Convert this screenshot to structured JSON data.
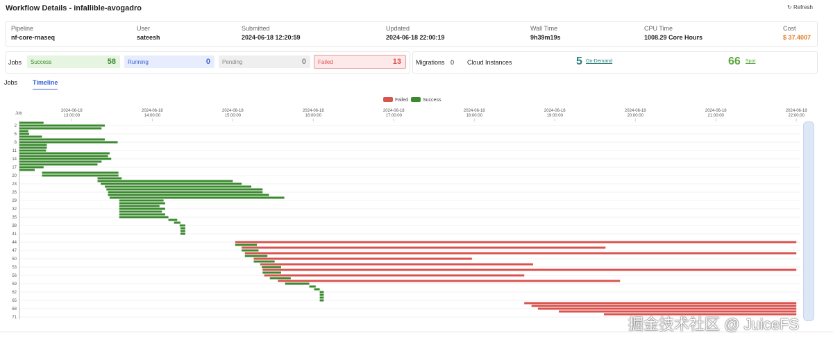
{
  "header": {
    "title": "Workflow Details - infallible-avogadro",
    "refresh": "Refresh"
  },
  "summary": [
    {
      "label": "Pipeline",
      "value": "nf-core-rnaseq"
    },
    {
      "label": "User",
      "value": "sateesh"
    },
    {
      "label": "Submitted",
      "value": "2024-06-18 12:20:59"
    },
    {
      "label": "Updated",
      "value": "2024-06-18 22:00:19"
    },
    {
      "label": "Wall Time",
      "value": "9h39m19s"
    },
    {
      "label": "CPU Time",
      "value": "1008.29 Core Hours"
    },
    {
      "label": "Cost",
      "value": "$ 37.4007"
    }
  ],
  "jobs_status": {
    "label": "Jobs",
    "items": [
      {
        "label": "Success",
        "value": 58
      },
      {
        "label": "Running",
        "value": 0
      },
      {
        "label": "Pending",
        "value": 0
      },
      {
        "label": "Failed",
        "value": 13
      }
    ]
  },
  "instances": {
    "migrations_label": "Migrations",
    "migrations": 0,
    "cloud_label": "Cloud Instances",
    "on_demand": 5,
    "on_demand_label": "On-Demand",
    "spot": 66,
    "spot_label": "Spot"
  },
  "tabs": [
    "Jobs",
    "Timeline"
  ],
  "timeline": {
    "type": "gantt",
    "y_label": "Job",
    "legend": [
      {
        "name": "Failed",
        "color": "#d9534f"
      },
      {
        "name": "Success",
        "color": "#3b8a2f"
      }
    ],
    "xlim": [
      12.35,
      22.05
    ],
    "xticks": [
      {
        "value": 13,
        "label": "2024-06-18 13:00:00"
      },
      {
        "value": 14,
        "label": "2024-06-18 14:00:00"
      },
      {
        "value": 15,
        "label": "2024-06-18 15:00:00"
      },
      {
        "value": 16,
        "label": "2024-06-18 16:00:00"
      },
      {
        "value": 17,
        "label": "2024-06-18 17:00:00"
      },
      {
        "value": 18,
        "label": "2024-06-18 18:00:00"
      },
      {
        "value": 19,
        "label": "2024-06-18 19:00:00"
      },
      {
        "value": 20,
        "label": "2024-06-18 20:00:00"
      },
      {
        "value": 21,
        "label": "2024-06-18 21:00:00"
      },
      {
        "value": 22,
        "label": "2024-06-18 22:00:00"
      }
    ],
    "ylim": [
      1,
      71
    ],
    "yticks": [
      2,
      5,
      8,
      11,
      14,
      17,
      20,
      23,
      26,
      29,
      32,
      35,
      38,
      41,
      44,
      47,
      50,
      53,
      56,
      59,
      62,
      65,
      68,
      71
    ],
    "jobs": [
      {
        "start": 12.35,
        "end": 12.65,
        "color": "#3b8a2f"
      },
      {
        "start": 12.35,
        "end": 13.41,
        "color": "#3b8a2f"
      },
      {
        "start": 12.35,
        "end": 13.37,
        "color": "#3b8a2f"
      },
      {
        "start": 12.35,
        "end": 12.46,
        "color": "#3b8a2f"
      },
      {
        "start": 12.35,
        "end": 12.47,
        "color": "#3b8a2f"
      },
      {
        "start": 12.35,
        "end": 12.63,
        "color": "#3b8a2f"
      },
      {
        "start": 12.35,
        "end": 13.41,
        "color": "#3b8a2f"
      },
      {
        "start": 12.35,
        "end": 13.57,
        "color": "#3b8a2f"
      },
      {
        "start": 12.35,
        "end": 12.69,
        "color": "#3b8a2f"
      },
      {
        "start": 12.35,
        "end": 12.69,
        "color": "#3b8a2f"
      },
      {
        "start": 12.35,
        "end": 12.68,
        "color": "#3b8a2f"
      },
      {
        "start": 12.35,
        "end": 13.47,
        "color": "#3b8a2f"
      },
      {
        "start": 12.35,
        "end": 13.45,
        "color": "#3b8a2f"
      },
      {
        "start": 12.35,
        "end": 13.49,
        "color": "#3b8a2f"
      },
      {
        "start": 12.35,
        "end": 13.37,
        "color": "#3b8a2f"
      },
      {
        "start": 12.35,
        "end": 13.32,
        "color": "#3b8a2f"
      },
      {
        "start": 12.35,
        "end": 12.65,
        "color": "#3b8a2f"
      },
      {
        "start": 12.35,
        "end": 12.54,
        "color": "#3b8a2f"
      },
      {
        "start": 12.63,
        "end": 13.58,
        "color": "#3b8a2f"
      },
      {
        "start": 12.63,
        "end": 13.58,
        "color": "#3b8a2f"
      },
      {
        "start": 13.32,
        "end": 13.62,
        "color": "#3b8a2f"
      },
      {
        "start": 13.32,
        "end": 15.0,
        "color": "#3b8a2f"
      },
      {
        "start": 13.36,
        "end": 15.11,
        "color": "#3b8a2f"
      },
      {
        "start": 13.41,
        "end": 15.23,
        "color": "#3b8a2f"
      },
      {
        "start": 13.43,
        "end": 15.37,
        "color": "#3b8a2f"
      },
      {
        "start": 13.45,
        "end": 15.37,
        "color": "#3b8a2f"
      },
      {
        "start": 13.45,
        "end": 15.45,
        "color": "#3b8a2f"
      },
      {
        "start": 13.47,
        "end": 15.64,
        "color": "#3b8a2f"
      },
      {
        "start": 13.59,
        "end": 14.14,
        "color": "#3b8a2f"
      },
      {
        "start": 13.59,
        "end": 14.16,
        "color": "#3b8a2f"
      },
      {
        "start": 13.59,
        "end": 14.09,
        "color": "#3b8a2f"
      },
      {
        "start": 13.59,
        "end": 14.16,
        "color": "#3b8a2f"
      },
      {
        "start": 13.59,
        "end": 14.12,
        "color": "#3b8a2f"
      },
      {
        "start": 13.59,
        "end": 14.16,
        "color": "#3b8a2f"
      },
      {
        "start": 13.59,
        "end": 14.2,
        "color": "#3b8a2f"
      },
      {
        "start": 14.2,
        "end": 14.31,
        "color": "#3b8a2f"
      },
      {
        "start": 14.27,
        "end": 14.35,
        "color": "#3b8a2f"
      },
      {
        "start": 14.34,
        "end": 14.41,
        "color": "#3b8a2f"
      },
      {
        "start": 14.35,
        "end": 14.41,
        "color": "#3b8a2f"
      },
      {
        "start": 14.35,
        "end": 14.41,
        "color": "#3b8a2f"
      },
      {
        "start": 14.35,
        "end": 14.41,
        "color": "#3b8a2f"
      },
      {
        "start": null,
        "end": null,
        "color": null
      },
      {
        "start": null,
        "end": null,
        "color": null
      },
      {
        "start": 15.03,
        "end": 22.0,
        "color": "#d9534f"
      },
      {
        "start": 15.03,
        "end": 15.3,
        "color": "#3b8a2f"
      },
      {
        "start": 15.11,
        "end": 19.63,
        "color": "#d9534f"
      },
      {
        "start": 15.11,
        "end": 15.32,
        "color": "#3b8a2f"
      },
      {
        "start": 15.15,
        "end": 22.0,
        "color": "#d9534f"
      },
      {
        "start": 15.15,
        "end": 15.43,
        "color": "#3b8a2f"
      },
      {
        "start": 15.26,
        "end": 17.97,
        "color": "#d9534f"
      },
      {
        "start": 15.26,
        "end": 15.52,
        "color": "#3b8a2f"
      },
      {
        "start": 15.34,
        "end": 18.73,
        "color": "#d9534f"
      },
      {
        "start": 15.36,
        "end": 15.6,
        "color": "#3b8a2f"
      },
      {
        "start": 15.37,
        "end": 22.0,
        "color": "#d9534f"
      },
      {
        "start": 15.37,
        "end": 15.6,
        "color": "#3b8a2f"
      },
      {
        "start": 15.39,
        "end": 18.62,
        "color": "#d9534f"
      },
      {
        "start": 15.46,
        "end": 15.72,
        "color": "#3b8a2f"
      },
      {
        "start": 15.56,
        "end": 19.81,
        "color": "#d9534f"
      },
      {
        "start": 15.65,
        "end": 15.95,
        "color": "#3b8a2f"
      },
      {
        "start": 15.95,
        "end": 16.03,
        "color": "#3b8a2f"
      },
      {
        "start": 16.01,
        "end": 16.08,
        "color": "#3b8a2f"
      },
      {
        "start": 16.08,
        "end": 16.13,
        "color": "#3b8a2f"
      },
      {
        "start": 16.08,
        "end": 16.13,
        "color": "#3b8a2f"
      },
      {
        "start": 16.08,
        "end": 16.13,
        "color": "#3b8a2f"
      },
      {
        "start": 16.08,
        "end": 16.13,
        "color": "#3b8a2f"
      },
      {
        "start": 18.62,
        "end": 22.0,
        "color": "#d9534f"
      },
      {
        "start": 18.71,
        "end": 22.0,
        "color": "#d9534f"
      },
      {
        "start": 18.79,
        "end": 22.0,
        "color": "#d9534f"
      },
      {
        "start": 19.05,
        "end": 22.0,
        "color": "#d9534f"
      },
      {
        "start": 19.61,
        "end": 22.0,
        "color": "#d9534f"
      },
      {
        "start": null,
        "end": null,
        "color": null
      }
    ]
  },
  "watermark": "掘金技术社区 @ JuiceFS"
}
